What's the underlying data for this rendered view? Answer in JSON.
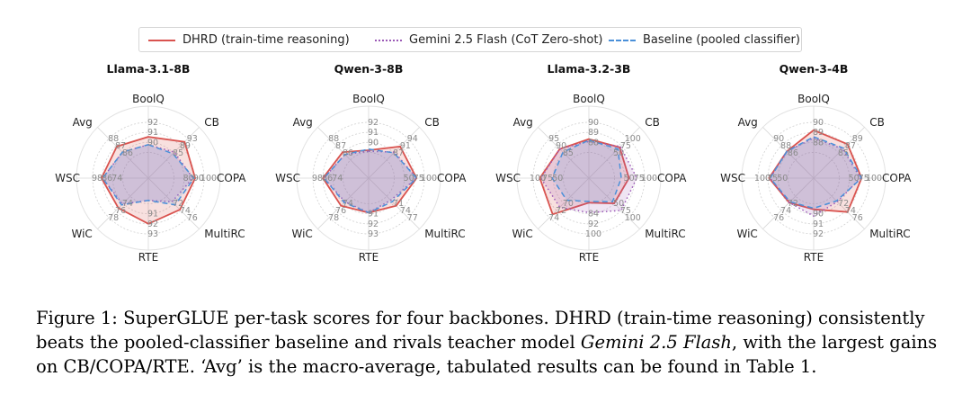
{
  "legend": [
    {
      "name": "DHRD (train-time reasoning)",
      "color": "#d9534f",
      "dash": "solid"
    },
    {
      "name": "Gemini 2.5 Flash (CoT Zero-shot)",
      "color": "#9b59b6",
      "dash": "dotted"
    },
    {
      "name": "Baseline (pooled classifier)",
      "color": "#4a90d9",
      "dash": "dashed"
    }
  ],
  "caption": {
    "figure_label": "Figure 1:",
    "text_1": "SuperGLUE per-task scores for four backbones. DHRD (train-time reasoning) consistently beats the pooled-classifier baseline and rivals teacher model",
    "model_name": "Gemini 2.5 Flash",
    "text_2": ", with the largest gains on CB/COPA/RTE. ‘Avg’ is the macro-average, tabulated results can be found in Table 1."
  },
  "chart_data": [
    {
      "type": "radar",
      "title": "Llama-3.1-8B",
      "axes": [
        "BoolQ",
        "CB",
        "COPA",
        "MultiRC",
        "RTE",
        "WiC",
        "WSC",
        "Avg"
      ],
      "axis_ticks": [
        [
          "92",
          "91",
          "90"
        ],
        [
          "93",
          "89",
          "85"
        ],
        [
          "100",
          "90",
          "80"
        ],
        [
          "76",
          "74",
          "72"
        ],
        [
          "93",
          "92",
          "91"
        ],
        [
          "78",
          "76",
          "74"
        ],
        [
          "98",
          "86",
          "74"
        ],
        [
          "88",
          "87",
          "86"
        ]
      ],
      "series": [
        {
          "name": "DHRD (train-time reasoning)",
          "values": [
            0.74,
            0.92,
            0.84,
            0.8,
            0.82,
            0.76,
            0.84,
            0.8
          ]
        },
        {
          "name": "Gemini 2.5 Flash (CoT Zero-shot)",
          "values": [
            0.6,
            0.66,
            0.8,
            0.6,
            0.4,
            0.66,
            0.82,
            0.66
          ]
        },
        {
          "name": "Baseline (pooled classifier)",
          "values": [
            0.6,
            0.62,
            0.82,
            0.68,
            0.4,
            0.68,
            0.82,
            0.66
          ]
        }
      ]
    },
    {
      "type": "radar",
      "title": "Qwen-3-8B",
      "axes": [
        "BoolQ",
        "CB",
        "COPA",
        "MultiRC",
        "RTE",
        "WiC",
        "WSC",
        "Avg"
      ],
      "axis_ticks": [
        [
          "92",
          "91",
          "90"
        ],
        [
          "94",
          "91",
          "87"
        ],
        [
          "100",
          "75",
          "50"
        ],
        [
          "77",
          "74",
          "71"
        ],
        [
          "93",
          "92",
          "91"
        ],
        [
          "78",
          "76",
          "74"
        ],
        [
          "98",
          "86",
          "74"
        ],
        [
          "88",
          "87",
          "86"
        ]
      ],
      "series": [
        {
          "name": "DHRD (train-time reasoning)",
          "values": [
            0.5,
            0.8,
            0.86,
            0.7,
            0.62,
            0.7,
            0.82,
            0.66
          ]
        },
        {
          "name": "Gemini 2.5 Flash (CoT Zero-shot)",
          "values": [
            0.48,
            0.66,
            0.86,
            0.56,
            0.62,
            0.6,
            0.8,
            0.6
          ]
        },
        {
          "name": "Baseline (pooled classifier)",
          "values": [
            0.52,
            0.64,
            0.86,
            0.6,
            0.62,
            0.62,
            0.8,
            0.6
          ]
        }
      ]
    },
    {
      "type": "radar",
      "title": "Llama-3.2-3B",
      "axes": [
        "BoolQ",
        "CB",
        "COPA",
        "MultiRC",
        "RTE",
        "WiC",
        "WSC",
        "Avg"
      ],
      "axis_ticks": [
        [
          "90",
          "89",
          "88"
        ],
        [
          "100",
          "75",
          "50"
        ],
        [
          "100",
          "75",
          "50"
        ],
        [
          "100",
          "75",
          "50"
        ],
        [
          "100",
          "92",
          "84"
        ],
        [
          "74",
          "72",
          "70"
        ],
        [
          "100",
          "75",
          "50"
        ],
        [
          "95",
          "90",
          "85"
        ]
      ],
      "series": [
        {
          "name": "DHRD (train-time reasoning)",
          "values": [
            0.7,
            0.78,
            0.72,
            0.64,
            0.44,
            0.92,
            0.88,
            0.74
          ]
        },
        {
          "name": "Gemini 2.5 Flash (CoT Zero-shot)",
          "values": [
            0.66,
            0.8,
            0.86,
            0.82,
            0.62,
            0.74,
            0.86,
            0.74
          ]
        },
        {
          "name": "Baseline (pooled classifier)",
          "values": [
            0.68,
            0.74,
            0.58,
            0.6,
            0.42,
            0.56,
            0.66,
            0.66
          ]
        }
      ]
    },
    {
      "type": "radar",
      "title": "Qwen-3-4B",
      "axes": [
        "BoolQ",
        "CB",
        "COPA",
        "MultiRC",
        "RTE",
        "WiC",
        "WSC",
        "Avg"
      ],
      "axis_ticks": [
        [
          "90",
          "89",
          "88"
        ],
        [
          "89",
          "87",
          "85"
        ],
        [
          "100",
          "75",
          "50"
        ],
        [
          "76",
          "74",
          "72"
        ],
        [
          "92",
          "91",
          "90"
        ],
        [
          "76",
          "74",
          "72"
        ],
        [
          "100",
          "75",
          "50"
        ],
        [
          "90",
          "88",
          "86"
        ]
      ],
      "series": [
        {
          "name": "DHRD (train-time reasoning)",
          "values": [
            0.86,
            0.86,
            0.86,
            0.86,
            0.56,
            0.62,
            0.8,
            0.68
          ]
        },
        {
          "name": "Gemini 2.5 Flash (CoT Zero-shot)",
          "values": [
            0.72,
            0.74,
            0.84,
            0.6,
            0.68,
            0.62,
            0.78,
            0.68
          ]
        },
        {
          "name": "Baseline (pooled classifier)",
          "values": [
            0.74,
            0.76,
            0.86,
            0.58,
            0.54,
            0.6,
            0.78,
            0.68
          ]
        }
      ]
    }
  ]
}
